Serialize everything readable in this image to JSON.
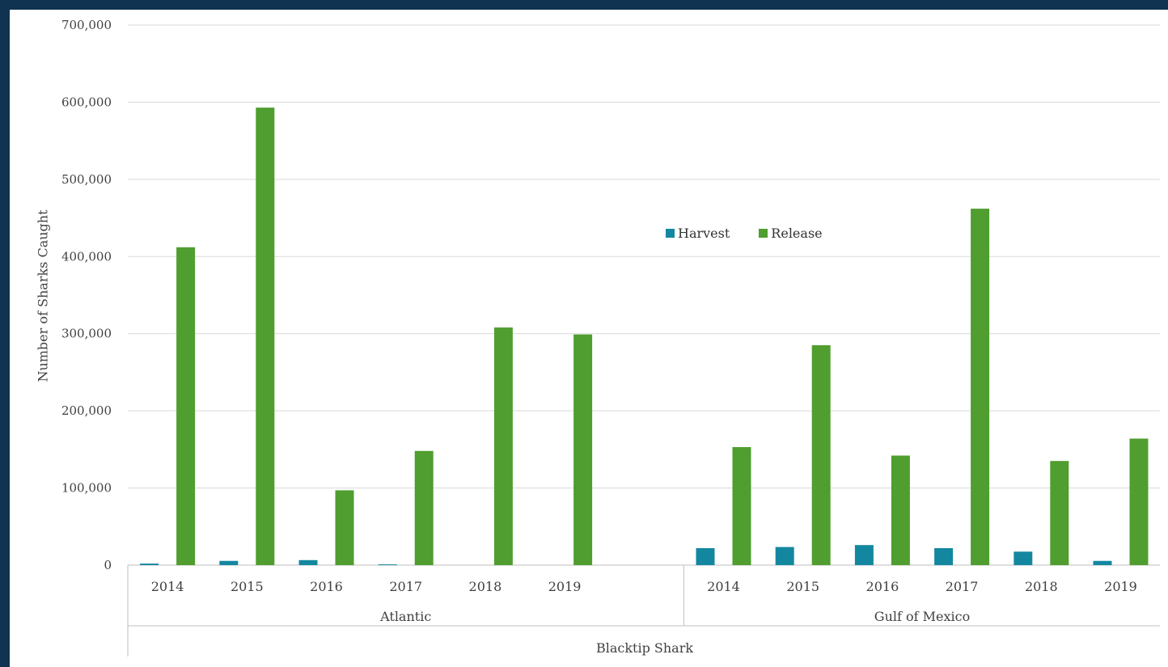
{
  "chart_data": {
    "type": "bar",
    "ylabel": "Number of Sharks Caught",
    "ylim": [
      0,
      700000
    ],
    "yticks": [
      0,
      100000,
      200000,
      300000,
      400000,
      500000,
      600000,
      700000
    ],
    "ytick_labels": [
      "0",
      "100,000",
      "200,000",
      "300,000",
      "400,000",
      "500,000",
      "600,000",
      "700,000"
    ],
    "grid": true,
    "legend_position": "center",
    "group_label": "Blacktip Shark",
    "regions": [
      {
        "name": "Atlantic",
        "categories": [
          "2014",
          "2015",
          "2016",
          "2017",
          "2018",
          "2019"
        ]
      },
      {
        "name": "Gulf of Mexico",
        "categories": [
          "2014",
          "2015",
          "2016",
          "2017",
          "2018",
          "2019"
        ]
      }
    ],
    "series": [
      {
        "name": "Harvest",
        "color": "#1487a0",
        "values": [
          2000,
          5500,
          6500,
          1000,
          0,
          0,
          22000,
          23500,
          26000,
          22000,
          17500,
          5500
        ]
      },
      {
        "name": "Release",
        "color": "#4f9e2f",
        "values": [
          412000,
          593000,
          97000,
          148000,
          308000,
          299000,
          153000,
          285000,
          142000,
          462000,
          135000,
          164000
        ]
      }
    ]
  }
}
